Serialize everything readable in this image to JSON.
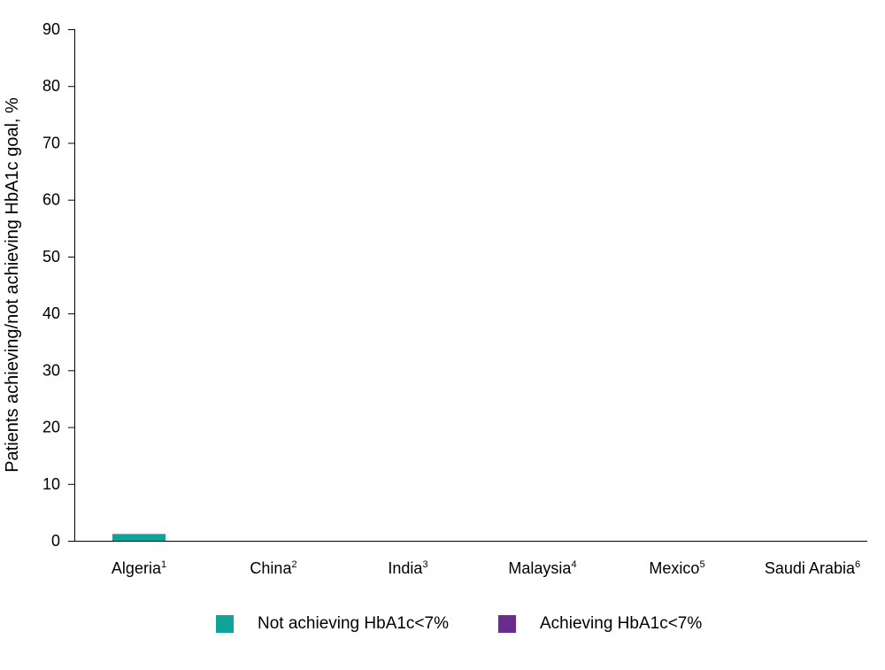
{
  "chart_data": {
    "type": "bar",
    "stacked": true,
    "title": "",
    "xlabel": "",
    "ylabel": "Patients achieving/not achieving HbA1c goal, %",
    "ylim": [
      0,
      90
    ],
    "yticks": [
      0,
      10,
      20,
      30,
      40,
      50,
      60,
      70,
      80,
      90
    ],
    "categories": [
      {
        "name": "Algeria",
        "ref": "1"
      },
      {
        "name": "China",
        "ref": "2"
      },
      {
        "name": "India",
        "ref": "3"
      },
      {
        "name": "Malaysia",
        "ref": "4"
      },
      {
        "name": "Mexico",
        "ref": "5"
      },
      {
        "name": "Saudi Arabia",
        "ref": "6"
      }
    ],
    "series": [
      {
        "name": "Not achieving HbA1c<7%",
        "color": "#0fa39a",
        "values": [
          1.2,
          0,
          0,
          0,
          0,
          0
        ]
      },
      {
        "name": "Achieving HbA1c<7%",
        "color": "#6a2c8e",
        "values": [
          0,
          0,
          0,
          0,
          0,
          0
        ]
      }
    ],
    "grid": false,
    "legend_position": "bottom"
  }
}
